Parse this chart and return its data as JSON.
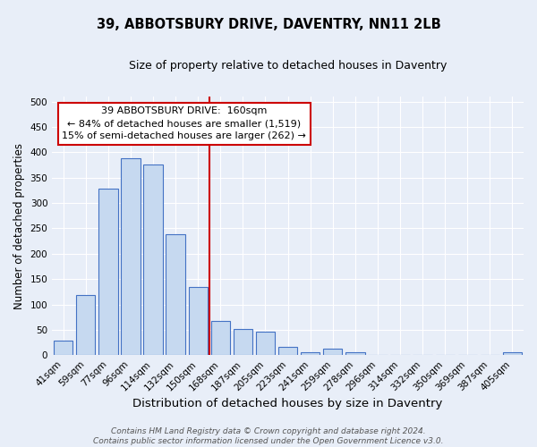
{
  "title": "39, ABBOTSBURY DRIVE, DAVENTRY, NN11 2LB",
  "subtitle": "Size of property relative to detached houses in Daventry",
  "xlabel": "Distribution of detached houses by size in Daventry",
  "ylabel": "Number of detached properties",
  "categories": [
    "41sqm",
    "59sqm",
    "77sqm",
    "96sqm",
    "114sqm",
    "132sqm",
    "150sqm",
    "168sqm",
    "187sqm",
    "205sqm",
    "223sqm",
    "241sqm",
    "259sqm",
    "278sqm",
    "296sqm",
    "314sqm",
    "332sqm",
    "350sqm",
    "369sqm",
    "387sqm",
    "405sqm"
  ],
  "values": [
    28,
    119,
    329,
    388,
    376,
    239,
    134,
    68,
    51,
    46,
    17,
    6,
    13,
    6,
    0,
    0,
    0,
    0,
    0,
    0,
    6
  ],
  "bar_color": "#c6d9f0",
  "bar_edge_color": "#4472c4",
  "vline_color": "#cc0000",
  "annotation_line1": "39 ABBOTSBURY DRIVE:  160sqm",
  "annotation_line2": "← 84% of detached houses are smaller (1,519)",
  "annotation_line3": "15% of semi-detached houses are larger (262) →",
  "annotation_box_color": "#ffffff",
  "annotation_box_edge_color": "#cc0000",
  "ylim": [
    0,
    510
  ],
  "yticks": [
    0,
    50,
    100,
    150,
    200,
    250,
    300,
    350,
    400,
    450,
    500
  ],
  "bg_color": "#e8eef8",
  "plot_bg_color": "#e8eef8",
  "footnote": "Contains HM Land Registry data © Crown copyright and database right 2024.\nContains public sector information licensed under the Open Government Licence v3.0.",
  "title_fontsize": 10.5,
  "subtitle_fontsize": 9,
  "xlabel_fontsize": 9.5,
  "ylabel_fontsize": 8.5,
  "tick_fontsize": 7.5,
  "annotation_fontsize": 8,
  "footnote_fontsize": 6.5
}
